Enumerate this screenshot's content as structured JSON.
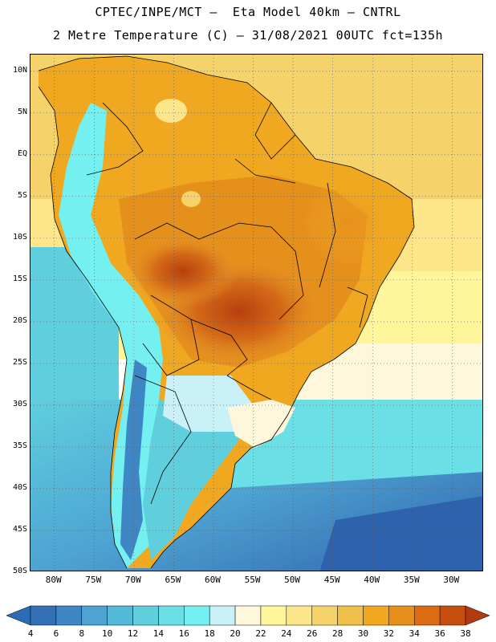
{
  "header": {
    "line1": "CPTEC/INPE/MCT –  Eta Model 40km – CNTRL",
    "line2": "2 Metre Temperature (C) – 31/08/2021 00UTC fct=135h"
  },
  "map": {
    "lat_labels": [
      "10N",
      "5N",
      "EQ",
      "5S",
      "10S",
      "15S",
      "20S",
      "25S",
      "30S",
      "35S",
      "40S",
      "45S",
      "50S"
    ],
    "lon_labels": [
      "80W",
      "75W",
      "70W",
      "65W",
      "60W",
      "55W",
      "50W",
      "45W",
      "40W",
      "35W",
      "30W"
    ],
    "lat_values": [
      10,
      5,
      0,
      -5,
      -10,
      -15,
      -20,
      -25,
      -30,
      -35,
      -40,
      -45,
      -50
    ],
    "lon_values": [
      -80,
      -75,
      -70,
      -65,
      -60,
      -55,
      -50,
      -45,
      -40,
      -35,
      -30
    ],
    "bounds": {
      "lon_min": -83,
      "lon_max": -26,
      "lat_min": -50,
      "lat_max": 12
    }
  },
  "colorbar": {
    "labels": [
      "4",
      "6",
      "8",
      "10",
      "12",
      "14",
      "16",
      "18",
      "20",
      "22",
      "24",
      "26",
      "28",
      "30",
      "32",
      "34",
      "36",
      "38"
    ],
    "low_color": "#2b6db5",
    "high_color": "#b23a10",
    "colors": [
      "#3370b8",
      "#3f86c4",
      "#4ea3d2",
      "#52bad8",
      "#5fcfde",
      "#6bdfe6",
      "#74f0f0",
      "#c9f1f7",
      "#fff7dc",
      "#fff59a",
      "#fde68a",
      "#f6d36a",
      "#f0c14a",
      "#f0a820",
      "#e6901c",
      "#dc6c14",
      "#c84e10"
    ]
  }
}
